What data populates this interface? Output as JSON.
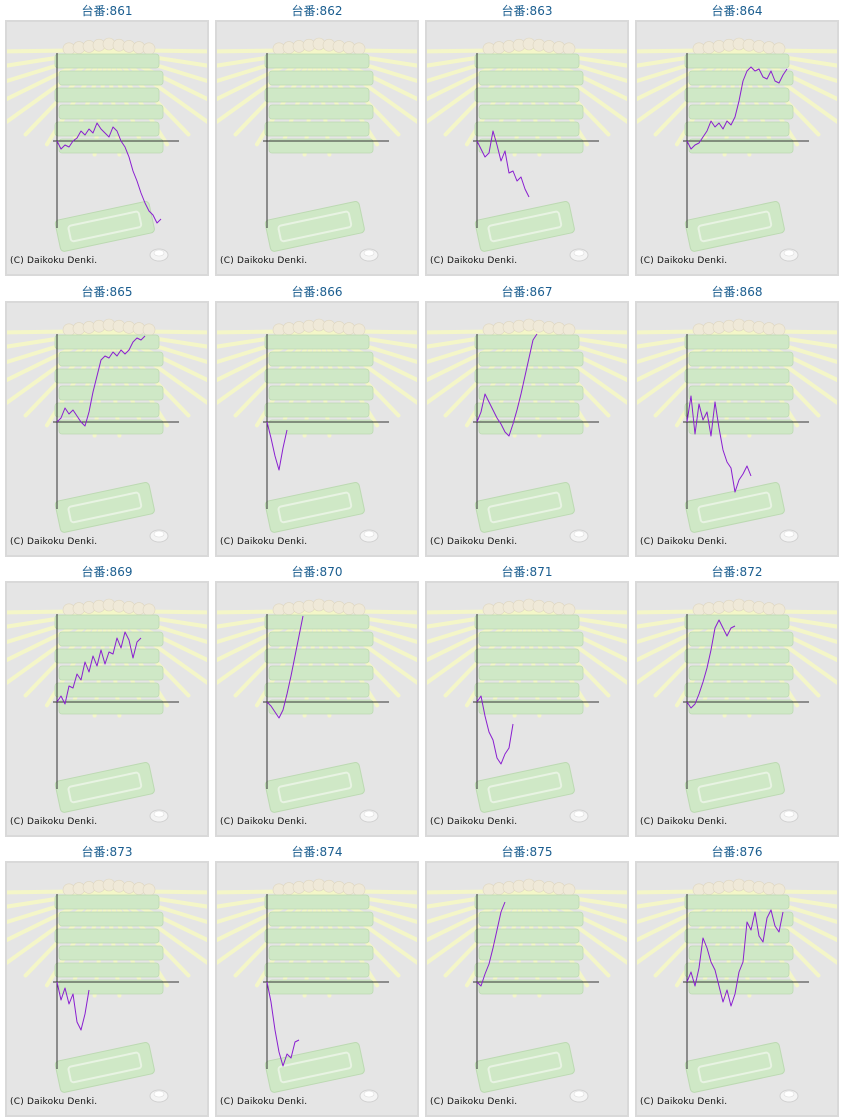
{
  "colors": {
    "title_text": "#1a5d8f",
    "panel_background": "#e5e5e5",
    "panel_border": "#d9d9d9",
    "graph_line": "#8a1fd0",
    "axis_line": "#333333",
    "watermark_green": "#cfe8c6",
    "watermark_rays": "#f4f6c8"
  },
  "icons": {
    "background": "pachinko-machine-watermark-icon",
    "coin": "pachinko-ball-icon"
  },
  "copyright": "(C) Daikoku Denki.",
  "machines": [
    {
      "title": "台番:861",
      "chart_data": {
        "type": "line",
        "series": [
          {
            "values": [
              0,
              -8,
              -4,
              -6,
              0,
              3,
              10,
              6,
              12,
              8,
              18,
              12,
              8,
              4,
              14,
              10,
              0,
              -6,
              -16,
              -30,
              -40,
              -52,
              -62,
              -70,
              -74,
              -82,
              -78
            ]
          }
        ]
      }
    },
    {
      "title": "台番:862",
      "chart_data": {
        "type": "line",
        "series": [
          {
            "values": []
          }
        ]
      }
    },
    {
      "title": "台番:863",
      "chart_data": {
        "type": "line",
        "series": [
          {
            "values": [
              0,
              -8,
              -16,
              -12,
              10,
              -4,
              -20,
              -10,
              -32,
              -30,
              -40,
              -36,
              -48,
              -56
            ]
          }
        ]
      }
    },
    {
      "title": "台番:864",
      "chart_data": {
        "type": "line",
        "series": [
          {
            "values": [
              0,
              -8,
              -4,
              -2,
              4,
              10,
              20,
              14,
              18,
              12,
              20,
              16,
              24,
              40,
              60,
              70,
              74,
              70,
              72,
              64,
              62,
              70,
              60,
              58,
              66,
              72
            ]
          }
        ]
      }
    },
    {
      "title": "台番:865",
      "chart_data": {
        "type": "line",
        "series": [
          {
            "values": [
              0,
              4,
              14,
              8,
              12,
              6,
              0,
              -4,
              10,
              30,
              46,
              62,
              66,
              64,
              70,
              66,
              72,
              68,
              72,
              80,
              84,
              82,
              86
            ]
          }
        ]
      }
    },
    {
      "title": "台番:866",
      "chart_data": {
        "type": "line",
        "series": [
          {
            "values": [
              0,
              -16,
              -34,
              -48,
              -26,
              -8
            ]
          }
        ]
      }
    },
    {
      "title": "台番:867",
      "chart_data": {
        "type": "line",
        "series": [
          {
            "values": [
              0,
              10,
              28,
              20,
              12,
              4,
              -2,
              -10,
              -14,
              -2,
              12,
              28,
              46,
              64,
              82,
              88
            ]
          }
        ]
      }
    },
    {
      "title": "台番:868",
      "chart_data": {
        "type": "line",
        "series": [
          {
            "values": [
              0,
              26,
              -12,
              18,
              2,
              10,
              -14,
              20,
              -6,
              -28,
              -40,
              -46,
              -70,
              -58,
              -52,
              -44,
              -54
            ]
          }
        ]
      }
    },
    {
      "title": "台番:869",
      "chart_data": {
        "type": "line",
        "series": [
          {
            "values": [
              0,
              6,
              -2,
              16,
              14,
              28,
              22,
              40,
              30,
              46,
              36,
              52,
              38,
              50,
              48,
              64,
              54,
              70,
              62,
              44,
              60,
              64
            ]
          }
        ]
      }
    },
    {
      "title": "台番:870",
      "chart_data": {
        "type": "line",
        "series": [
          {
            "values": [
              0,
              -4,
              -10,
              -16,
              -8,
              8,
              26,
              46,
              66,
              86
            ]
          }
        ]
      }
    },
    {
      "title": "台番:871",
      "chart_data": {
        "type": "line",
        "series": [
          {
            "values": [
              0,
              6,
              -14,
              -30,
              -38,
              -56,
              -62,
              -52,
              -46,
              -22
            ]
          }
        ]
      }
    },
    {
      "title": "台番:872",
      "chart_data": {
        "type": "line",
        "series": [
          {
            "values": [
              0,
              -6,
              -2,
              8,
              20,
              34,
              52,
              74,
              82,
              74,
              66,
              74,
              76
            ]
          }
        ]
      }
    },
    {
      "title": "台番:873",
      "chart_data": {
        "type": "line",
        "series": [
          {
            "values": [
              0,
              -18,
              -6,
              -22,
              -12,
              -40,
              -48,
              -32,
              -8
            ]
          }
        ]
      }
    },
    {
      "title": "台番:874",
      "chart_data": {
        "type": "line",
        "series": [
          {
            "values": [
              0,
              -20,
              -48,
              -70,
              -84,
              -72,
              -76,
              -60,
              -58
            ]
          }
        ]
      }
    },
    {
      "title": "台番:875",
      "chart_data": {
        "type": "line",
        "series": [
          {
            "values": [
              0,
              -4,
              8,
              18,
              34,
              52,
              70,
              80
            ]
          }
        ]
      }
    },
    {
      "title": "台番:876",
      "chart_data": {
        "type": "line",
        "series": [
          {
            "values": [
              0,
              10,
              -4,
              14,
              44,
              34,
              20,
              12,
              -4,
              -20,
              -8,
              -24,
              -12,
              10,
              20,
              60,
              52,
              70,
              46,
              40,
              64,
              72,
              56,
              50,
              70
            ]
          }
        ]
      }
    }
  ]
}
